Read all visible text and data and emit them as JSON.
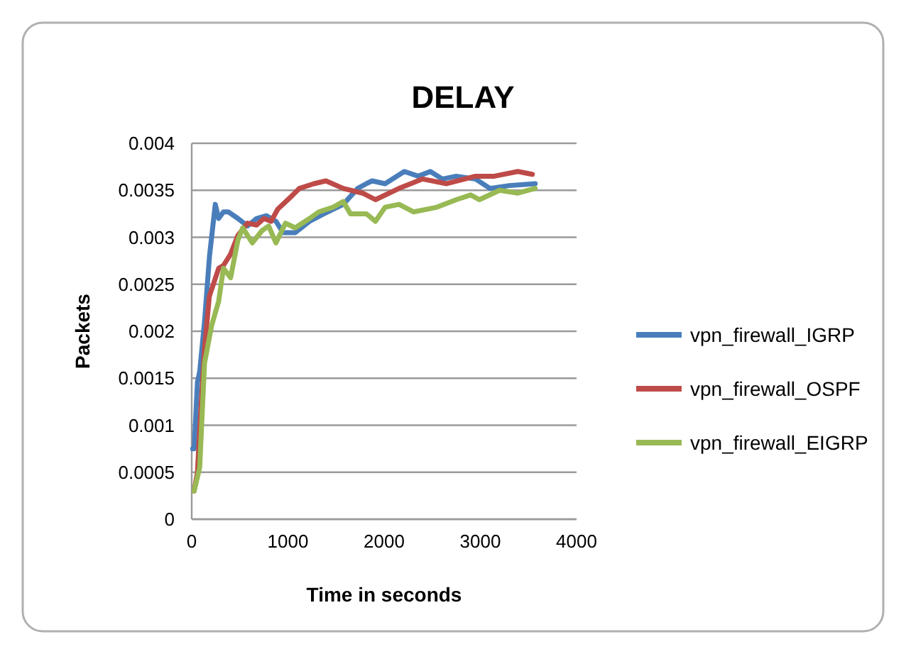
{
  "chart_data": {
    "type": "line",
    "title": "DELAY",
    "xlabel": "Time in seconds",
    "ylabel": "Packets",
    "xlim": [
      0,
      4000
    ],
    "xticks": [
      0,
      1000,
      2000,
      3000,
      4000
    ],
    "ylim": [
      0,
      0.004
    ],
    "yticks": [
      0,
      0.0005,
      0.001,
      0.0015,
      0.002,
      0.0025,
      0.003,
      0.0035,
      0.004
    ],
    "grid": "y",
    "legend": "right",
    "series": [
      {
        "name": "vpn_firewall_IGRP",
        "color": "#4a7ebb",
        "x": [
          10,
          25,
          60,
          83,
          133,
          185,
          245,
          280,
          330,
          380,
          480,
          580,
          675,
          775,
          875,
          950,
          1075,
          1225,
          1375,
          1575,
          1725,
          1815,
          1875,
          2010,
          2210,
          2355,
          2480,
          2605,
          2750,
          2950,
          3100,
          3300,
          3570
        ],
        "values": [
          0.00075,
          0.00075,
          0.00146,
          0.00157,
          0.0021,
          0.0028,
          0.00335,
          0.0032,
          0.00327,
          0.00327,
          0.0032,
          0.00312,
          0.0032,
          0.00323,
          0.00317,
          0.00305,
          0.00305,
          0.00317,
          0.00325,
          0.00335,
          0.00352,
          0.00357,
          0.0036,
          0.00357,
          0.0037,
          0.00365,
          0.0037,
          0.00362,
          0.00365,
          0.00362,
          0.00352,
          0.00355,
          0.00357
        ]
      },
      {
        "name": "vpn_firewall_OSPF",
        "color": "#be4b48",
        "x": [
          25,
          60,
          83,
          133,
          183,
          280,
          330,
          404,
          480,
          580,
          675,
          750,
          825,
          895,
          1020,
          1120,
          1270,
          1395,
          1575,
          1775,
          1815,
          1910,
          2155,
          2400,
          2650,
          2950,
          3145,
          3390,
          3540
        ],
        "values": [
          0.0003,
          0.0005,
          0.00096,
          0.00181,
          0.00237,
          0.00267,
          0.0027,
          0.00282,
          0.00302,
          0.00315,
          0.00313,
          0.0032,
          0.00317,
          0.0033,
          0.00342,
          0.00352,
          0.00357,
          0.0036,
          0.00352,
          0.00347,
          0.00345,
          0.0034,
          0.00352,
          0.00362,
          0.00357,
          0.00365,
          0.00365,
          0.0037,
          0.00367
        ]
      },
      {
        "name": "vpn_firewall_EIGRP",
        "color": "#98b954",
        "x": [
          25,
          83,
          133,
          207,
          280,
          330,
          404,
          480,
          530,
          630,
          730,
          800,
          875,
          975,
          1075,
          1225,
          1320,
          1470,
          1575,
          1650,
          1775,
          1815,
          1910,
          2010,
          2155,
          2305,
          2550,
          2750,
          2900,
          2990,
          3200,
          3390,
          3570
        ],
        "values": [
          0.0003,
          0.00055,
          0.00166,
          0.00206,
          0.00232,
          0.00267,
          0.00257,
          0.00297,
          0.0031,
          0.00294,
          0.00307,
          0.00312,
          0.00294,
          0.00315,
          0.0031,
          0.0032,
          0.00327,
          0.00332,
          0.00338,
          0.00325,
          0.00325,
          0.00325,
          0.00317,
          0.00332,
          0.00335,
          0.00327,
          0.00332,
          0.0034,
          0.00345,
          0.0034,
          0.0035,
          0.00347,
          0.00352
        ]
      }
    ]
  }
}
